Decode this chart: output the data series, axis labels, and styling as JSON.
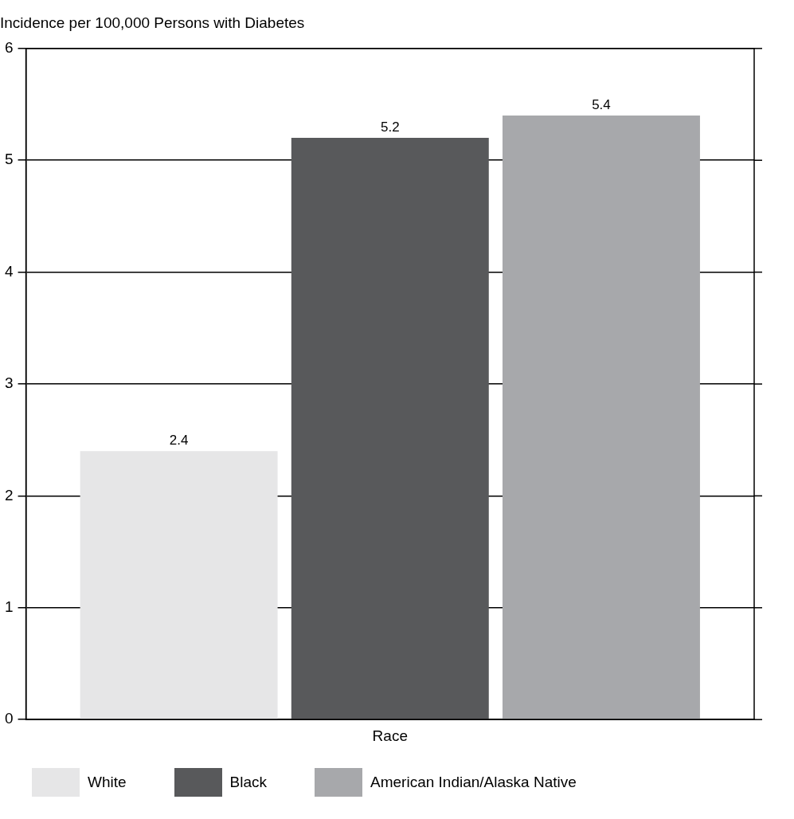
{
  "chart_data": {
    "type": "bar",
    "ylabel": "Incidence per 100,000 Persons with Diabetes",
    "xlabel": "Race",
    "categories": [
      null
    ],
    "series": [
      {
        "name": "White",
        "color": "#e6e6e7",
        "values": [
          2.4
        ]
      },
      {
        "name": "Black",
        "color": "#58595b",
        "values": [
          5.2
        ]
      },
      {
        "name": "American Indian/Alaska Native",
        "color": "#a7a8ab",
        "values": [
          5.4
        ]
      }
    ],
    "ylim": [
      0,
      6
    ],
    "yticks": [
      0,
      1,
      2,
      3,
      4,
      5,
      6
    ],
    "grid": "y",
    "legend": "bottom",
    "data_labels": true
  }
}
